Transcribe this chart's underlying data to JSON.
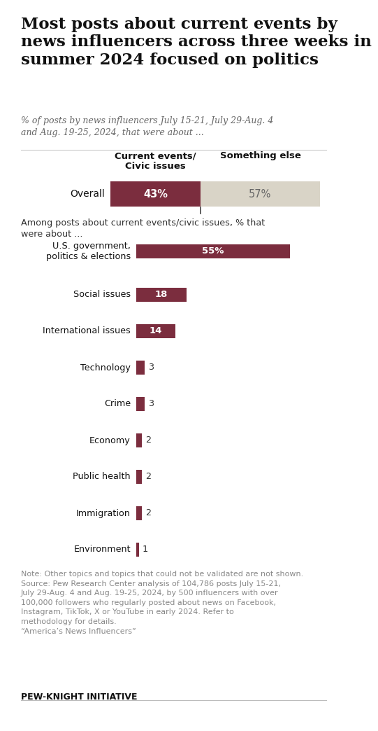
{
  "title": "Most posts about current events by\nnews influencers across three weeks in\nsummer 2024 focused on politics",
  "subtitle": "% of posts by news influencers July 15-21, July 29-Aug. 4\nand Aug. 19-25, 2024, that were about ...",
  "overall_label": "Overall",
  "overall_current": 43,
  "overall_else": 57,
  "overall_color": "#7b2d3e",
  "overall_else_color": "#d9d4c7",
  "col1_header": "Current events/\nCivic issues",
  "col2_header": "Something else",
  "section2_label": "Among posts about current events/civic issues, % that\nwere about ...",
  "categories": [
    "U.S. government,\npolitics & elections",
    "Social issues",
    "International issues",
    "Technology",
    "Crime",
    "Economy",
    "Public health",
    "Immigration",
    "Environment"
  ],
  "values": [
    55,
    18,
    14,
    3,
    3,
    2,
    2,
    2,
    1
  ],
  "bar_color": "#7b2d3e",
  "note_text": "Note: Other topics and topics that could not be validated are not shown.\nSource: Pew Research Center analysis of 104,786 posts July 15-21,\nJuly 29-Aug. 4 and Aug. 19-25, 2024, by 500 influencers with over\n100,000 followers who regularly posted about news on Facebook,\nInstagram, TikTok, X or YouTube in early 2024. Refer to\nmethodology for details.\n“America’s News Influencers”",
  "footer_text": "PEW-KNIGHT INITIATIVE",
  "bg_color": "#ffffff",
  "text_color": "#333333",
  "note_color": "#888888"
}
